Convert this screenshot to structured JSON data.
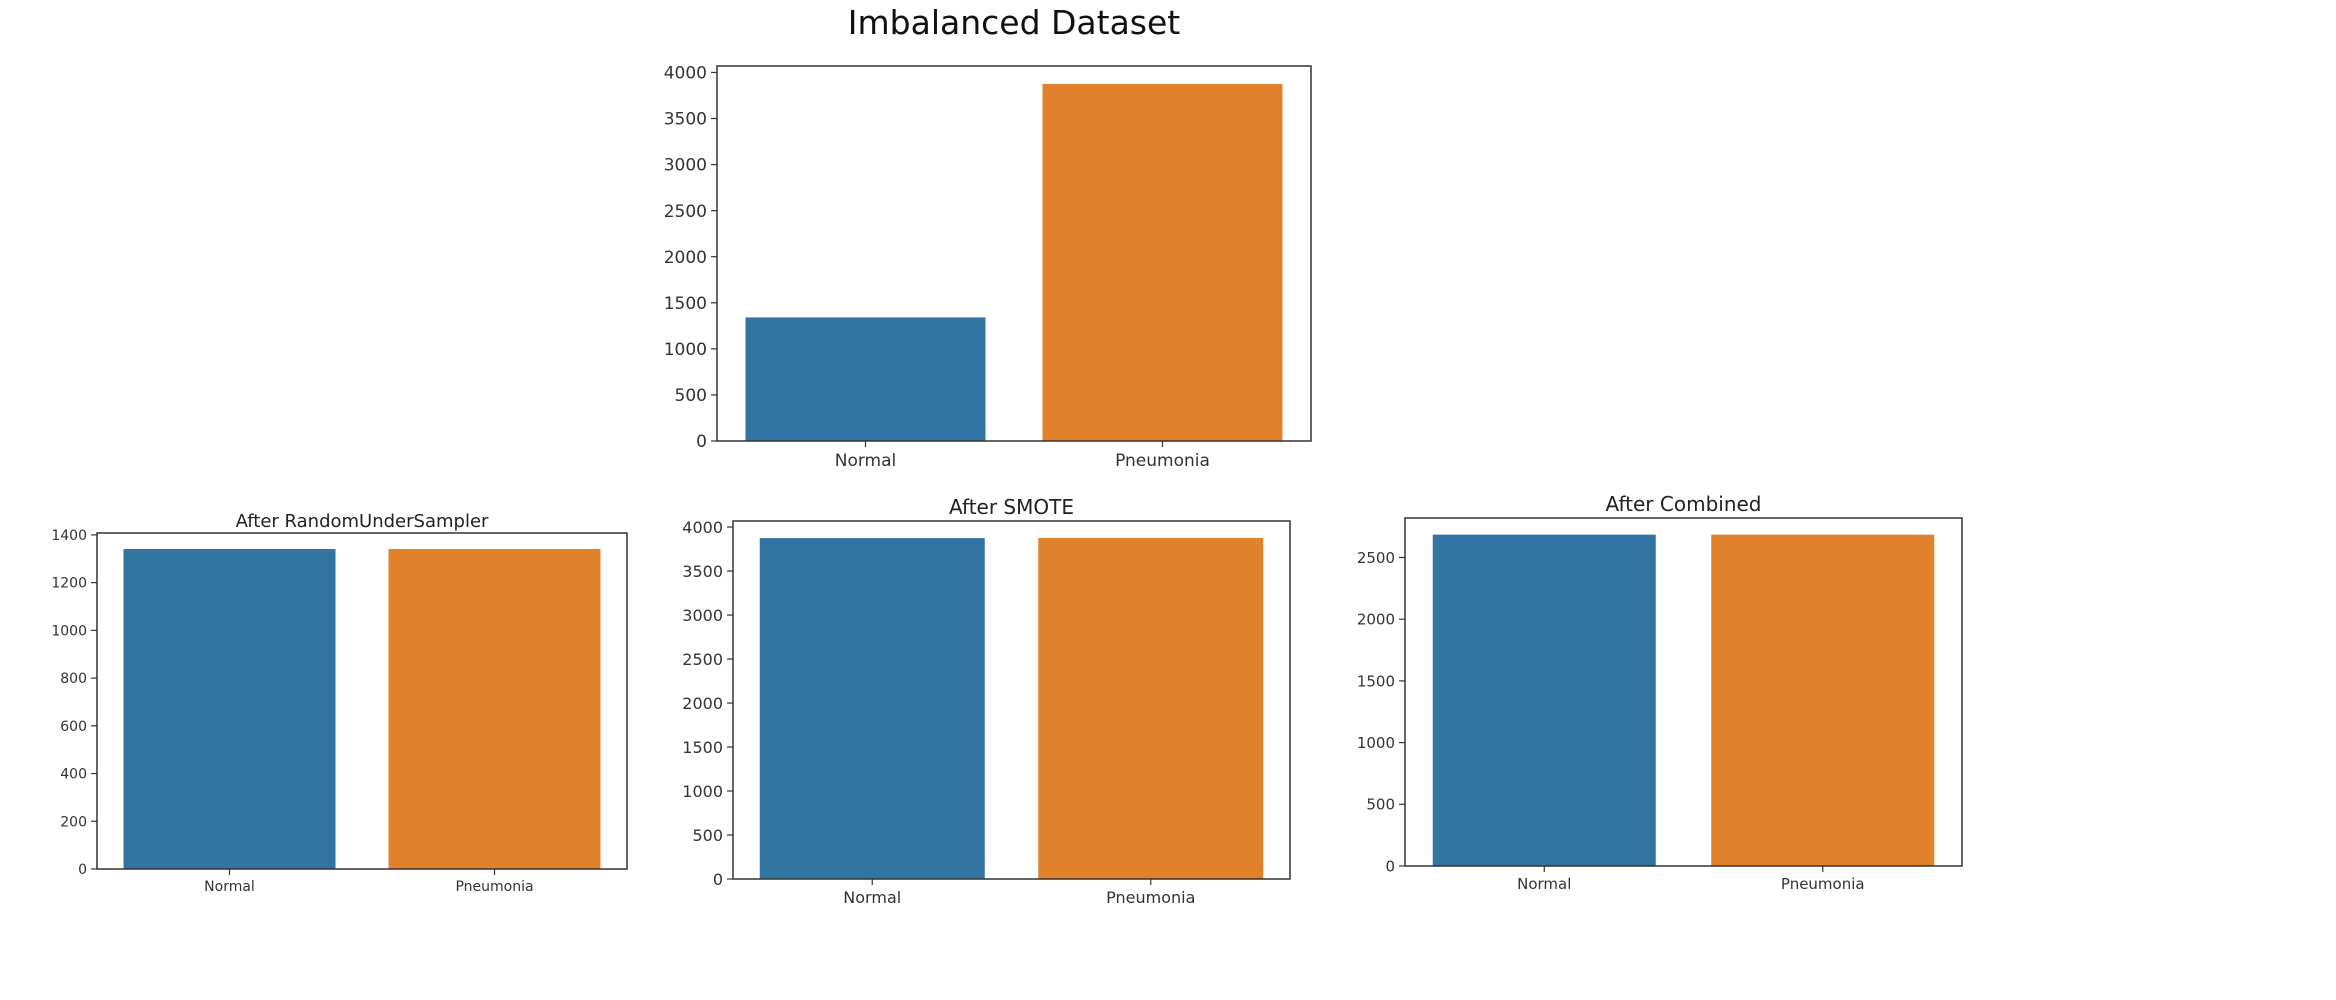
{
  "colors": {
    "normal": "#3274a1",
    "pneumonia": "#e1812c",
    "axis": "#333333"
  },
  "chart_data": [
    {
      "type": "bar",
      "title": "Imbalanced Dataset",
      "categories": [
        "Normal",
        "Pneumonia"
      ],
      "values": [
        1341,
        3875
      ],
      "ylim": [
        0,
        4070
      ],
      "yticks": [
        0,
        500,
        1000,
        1500,
        2000,
        2500,
        3000,
        3500,
        4000
      ],
      "xlabel": "",
      "ylabel": "",
      "grid": false
    },
    {
      "type": "bar",
      "title": "After RandomUnderSampler",
      "categories": [
        "Normal",
        "Pneumonia"
      ],
      "values": [
        1341,
        1341
      ],
      "ylim": [
        0,
        1408
      ],
      "yticks": [
        0,
        200,
        400,
        600,
        800,
        1000,
        1200,
        1400
      ],
      "xlabel": "",
      "ylabel": "",
      "grid": false
    },
    {
      "type": "bar",
      "title": "After SMOTE",
      "categories": [
        "Normal",
        "Pneumonia"
      ],
      "values": [
        3875,
        3875
      ],
      "ylim": [
        0,
        4069
      ],
      "yticks": [
        0,
        500,
        1000,
        1500,
        2000,
        2500,
        3000,
        3500,
        4000
      ],
      "xlabel": "",
      "ylabel": "",
      "grid": false
    },
    {
      "type": "bar",
      "title": "After Combined",
      "categories": [
        "Normal",
        "Pneumonia"
      ],
      "values": [
        2685,
        2685
      ],
      "ylim": [
        0,
        2820
      ],
      "yticks": [
        0,
        500,
        1000,
        1500,
        2000,
        2500
      ],
      "xlabel": "",
      "ylabel": "",
      "grid": false
    }
  ]
}
